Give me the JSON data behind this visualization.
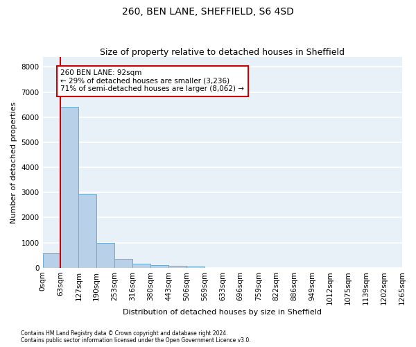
{
  "title": "260, BEN LANE, SHEFFIELD, S6 4SD",
  "subtitle": "Size of property relative to detached houses in Sheffield",
  "xlabel": "Distribution of detached houses by size in Sheffield",
  "ylabel": "Number of detached properties",
  "ann_line1": "260 BEN LANE: 92sqm",
  "ann_line2": "← 29% of detached houses are smaller (3,236)",
  "ann_line3": "71% of semi-detached houses are larger (8,062) →",
  "property_bin": 1,
  "footnote1": "Contains HM Land Registry data © Crown copyright and database right 2024.",
  "footnote2": "Contains public sector information licensed under the Open Government Licence v3.0.",
  "bin_labels": [
    "0sqm",
    "63sqm",
    "127sqm",
    "190sqm",
    "253sqm",
    "316sqm",
    "380sqm",
    "443sqm",
    "506sqm",
    "569sqm",
    "633sqm",
    "696sqm",
    "759sqm",
    "822sqm",
    "886sqm",
    "949sqm",
    "1012sqm",
    "1075sqm",
    "1139sqm",
    "1202sqm",
    "1265sqm"
  ],
  "bar_values": [
    570,
    6400,
    2920,
    980,
    360,
    160,
    110,
    70,
    50,
    0,
    0,
    0,
    0,
    0,
    0,
    0,
    0,
    0,
    0,
    0
  ],
  "bar_color": "#b8d0e8",
  "bar_edge_color": "#6aabd2",
  "highlight_line_color": "#cc0000",
  "annotation_box_color": "#cc0000",
  "background_color": "#e8f0f8",
  "ylim": [
    0,
    8400
  ],
  "yticks": [
    0,
    1000,
    2000,
    3000,
    4000,
    5000,
    6000,
    7000,
    8000
  ],
  "grid_color": "#ffffff",
  "title_fontsize": 10,
  "subtitle_fontsize": 9,
  "xlabel_fontsize": 8,
  "ylabel_fontsize": 8,
  "tick_fontsize": 7.5,
  "ann_fontsize": 7.5
}
